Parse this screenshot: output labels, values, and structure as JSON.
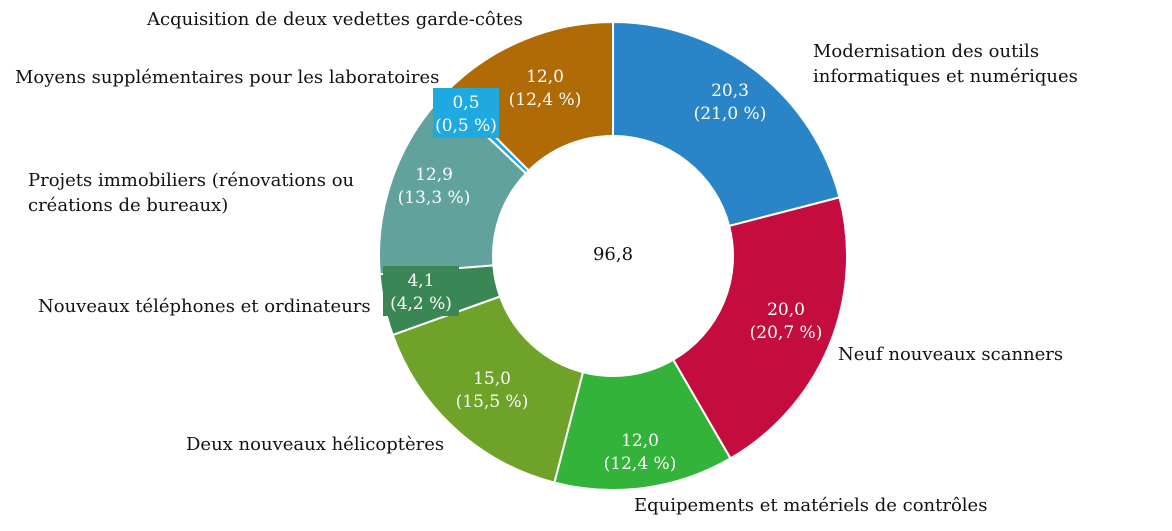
{
  "chart_data": {
    "type": "pie",
    "variant": "donut",
    "center_total": "96,8",
    "slices": [
      {
        "name": "Modernisation des outils informatiques et numériques",
        "label_lines": [
          "Modernisation des outils",
          "informatiques et numériques"
        ],
        "value": 20.3,
        "value_label": "20,3",
        "pct_label": "(21,0 %)",
        "color": "#2984c8"
      },
      {
        "name": "Neuf nouveaux scanners",
        "label_lines": [
          "Neuf nouveaux scanners"
        ],
        "value": 20.0,
        "value_label": "20,0",
        "pct_label": "(20,7 %)",
        "color": "#c40d3e"
      },
      {
        "name": "Equipements et matériels de contrôles",
        "label_lines": [
          "Equipements et matériels de contrôles"
        ],
        "value": 12.0,
        "value_label": "12,0",
        "pct_label": "(12,4 %)",
        "color": "#33b33a"
      },
      {
        "name": "Deux nouveaux hélicoptères",
        "label_lines": [
          "Deux nouveaux hélicoptères"
        ],
        "value": 15.0,
        "value_label": "15,0",
        "pct_label": "(15,5 %)",
        "color": "#6ea229"
      },
      {
        "name": "Nouveaux téléphones et ordinateurs",
        "label_lines": [
          "Nouveaux téléphones et ordinateurs"
        ],
        "value": 4.1,
        "value_label": "4,1",
        "pct_label": "(4,2 %)",
        "color": "#3a8755"
      },
      {
        "name": "Projets immobiliers (rénovations ou créations de bureaux)",
        "label_lines": [
          "Projets immobiliers (rénovations ou",
          "créations de bureaux)"
        ],
        "value": 12.9,
        "value_label": "12,9",
        "pct_label": "(13,3 %)",
        "color": "#62a29c"
      },
      {
        "name": "Moyens supplémentaires pour les laboratoires",
        "label_lines": [
          "Moyens supplémentaires pour les laboratoires"
        ],
        "value": 0.5,
        "value_label": "0,5",
        "pct_label": "(0,5 %)",
        "color": "#1ea9e1"
      },
      {
        "name": "Acquisition de deux vedettes garde-côtes",
        "label_lines": [
          "Acquisition de deux vedettes garde-côtes"
        ],
        "value": 12.0,
        "value_label": "12,0",
        "pct_label": "(12,4 %)",
        "color": "#b06b06"
      }
    ]
  }
}
